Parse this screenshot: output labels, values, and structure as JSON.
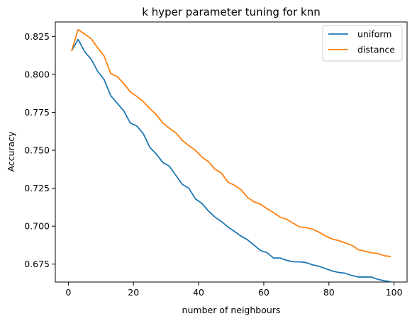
{
  "chart_data": {
    "type": "line",
    "title": "k hyper parameter tuning for knn",
    "xlabel": "number of neighbours",
    "ylabel": "Accuracy",
    "xlim": [
      -4,
      104
    ],
    "ylim": [
      0.6632,
      0.8345
    ],
    "xticks": [
      0,
      20,
      40,
      60,
      80,
      100
    ],
    "yticks": [
      0.675,
      0.7,
      0.725,
      0.75,
      0.775,
      0.8,
      0.825
    ],
    "ytick_labels": [
      "0.675",
      "0.700",
      "0.725",
      "0.750",
      "0.775",
      "0.800",
      "0.825"
    ],
    "xtick_labels": [
      "0",
      "20",
      "40",
      "60",
      "80",
      "100"
    ],
    "grid": false,
    "legend_position": "top-right",
    "x": [
      1,
      3,
      5,
      7,
      9,
      11,
      13,
      15,
      17,
      19,
      21,
      23,
      25,
      27,
      29,
      31,
      33,
      35,
      37,
      39,
      41,
      43,
      45,
      47,
      49,
      51,
      53,
      55,
      57,
      59,
      61,
      63,
      65,
      67,
      69,
      71,
      73,
      75,
      77,
      79,
      81,
      83,
      85,
      87,
      89,
      91,
      93,
      95,
      97,
      99
    ],
    "series": [
      {
        "name": "uniform",
        "color": "#1f77b4",
        "values": [
          0.8155,
          0.823,
          0.815,
          0.81,
          0.802,
          0.7965,
          0.786,
          0.781,
          0.776,
          0.768,
          0.766,
          0.761,
          0.752,
          0.7475,
          0.742,
          0.7395,
          0.7335,
          0.7275,
          0.725,
          0.718,
          0.715,
          0.71,
          0.706,
          0.703,
          0.6995,
          0.6965,
          0.6935,
          0.691,
          0.6875,
          0.684,
          0.6825,
          0.679,
          0.679,
          0.6775,
          0.6765,
          0.6765,
          0.676,
          0.6745,
          0.6735,
          0.672,
          0.6705,
          0.6695,
          0.669,
          0.6675,
          0.6665,
          0.6665,
          0.6665,
          0.665,
          0.664,
          0.6635
        ]
      },
      {
        "name": "distance",
        "color": "#ff7f0e",
        "values": [
          0.8155,
          0.8295,
          0.8265,
          0.8235,
          0.8175,
          0.812,
          0.8005,
          0.7985,
          0.794,
          0.7885,
          0.7855,
          0.782,
          0.7775,
          0.7735,
          0.768,
          0.7645,
          0.7615,
          0.7565,
          0.753,
          0.75,
          0.7455,
          0.7425,
          0.7375,
          0.735,
          0.729,
          0.727,
          0.724,
          0.719,
          0.716,
          0.7145,
          0.7115,
          0.709,
          0.706,
          0.7045,
          0.702,
          0.6995,
          0.699,
          0.698,
          0.696,
          0.6935,
          0.6915,
          0.6905,
          0.689,
          0.6875,
          0.6845,
          0.6835,
          0.6825,
          0.682,
          0.6805,
          0.68
        ]
      }
    ]
  }
}
